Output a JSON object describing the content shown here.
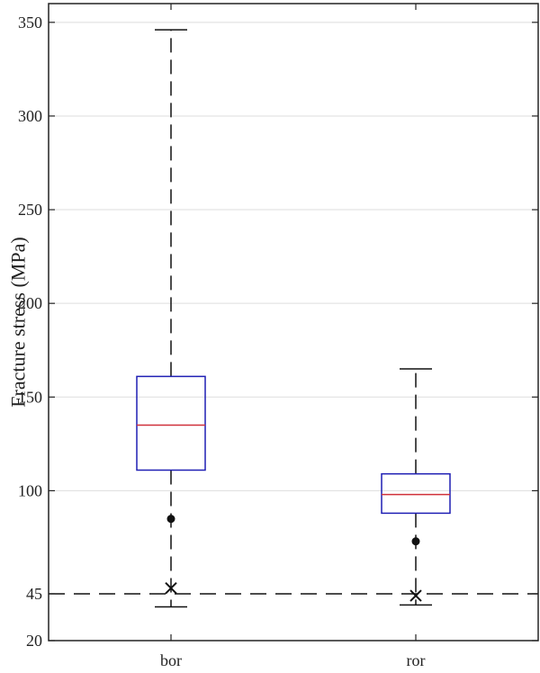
{
  "chart_data": {
    "type": "box",
    "title": "",
    "xlabel": "",
    "ylabel": "Fracture stress (MPa)",
    "ylim": [
      20,
      360
    ],
    "yticks": [
      20,
      45,
      100,
      150,
      200,
      250,
      300,
      350
    ],
    "y_tick_labels": [
      "20",
      "45",
      "100",
      "150",
      "200",
      "250",
      "300",
      "350"
    ],
    "grid": true,
    "reference_line": {
      "y": 45,
      "style": "dashed"
    },
    "categories": [
      "bor",
      "ror"
    ],
    "boxes": [
      {
        "name": "bor",
        "whisker_low": 38,
        "q1": 111,
        "median": 135,
        "q3": 161,
        "whisker_high": 346,
        "dot": 85,
        "cross": 48
      },
      {
        "name": "ror",
        "whisker_low": 39,
        "q1": 88,
        "median": 98,
        "q3": 109,
        "whisker_high": 165,
        "dot": 73,
        "cross": 44
      }
    ],
    "colors": {
      "box": "#1f1fb4",
      "median": "#d0303a",
      "whisker": "#111111",
      "grid": "#dddddd",
      "axis": "#222222"
    }
  }
}
